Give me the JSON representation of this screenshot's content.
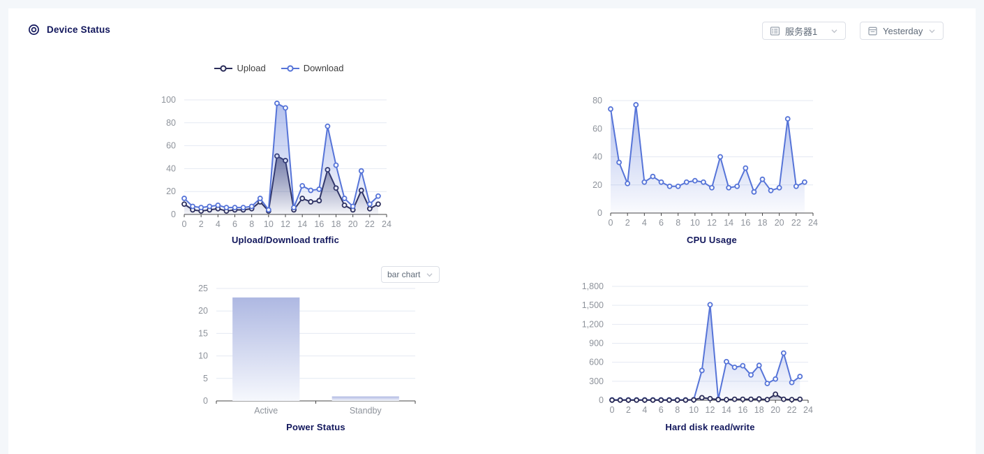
{
  "header": {
    "title": "Device Status",
    "server_select": {
      "value": "服务器1",
      "icon": "server-icon"
    },
    "time_select": {
      "value": "Yesterday",
      "icon": "calendar-icon"
    }
  },
  "colors": {
    "page_bg": "#f4f7fa",
    "card_bg": "#ffffff",
    "navy_text": "#12175c",
    "upload_line": "#2b2d5a",
    "download_line": "#5674d8",
    "axis_label": "#8e939b",
    "axis_line": "#454545",
    "gridline": "#e4e9f2",
    "bar_top": "#aeb8e2",
    "bar_bottom": "#f6f8fd",
    "select_border": "#dcdfe6",
    "select_text": "#5f6a78"
  },
  "chart_data": [
    {
      "id": "traffic",
      "type": "line",
      "title": "Upload/Download traffic",
      "legend": [
        "Upload",
        "Download"
      ],
      "legend_position": "top",
      "x": [
        0,
        1,
        2,
        3,
        4,
        5,
        6,
        7,
        8,
        9,
        10,
        11,
        12,
        13,
        14,
        15,
        16,
        17,
        18,
        19,
        20,
        21,
        22,
        23
      ],
      "x_ticks": [
        0,
        2,
        4,
        6,
        8,
        10,
        12,
        14,
        16,
        18,
        20,
        22,
        24
      ],
      "xlabel": "",
      "ylabel": "",
      "ylim": [
        0,
        100
      ],
      "y_ticks": [
        0,
        20,
        40,
        60,
        80,
        100
      ],
      "y_tick_labels": [
        "0",
        "20",
        "40",
        "60",
        "80",
        "100"
      ],
      "grid": true,
      "series": [
        {
          "name": "Upload",
          "color": "#2b2d5a",
          "values": [
            9,
            4,
            3,
            4,
            5,
            3,
            4,
            4,
            5,
            11,
            3,
            51,
            47,
            4,
            14,
            11,
            12,
            39,
            23,
            8,
            4,
            21,
            5,
            9
          ]
        },
        {
          "name": "Download",
          "color": "#5674d8",
          "values": [
            14,
            7,
            6,
            7,
            8,
            6,
            6,
            6,
            7,
            14,
            4,
            97,
            93,
            6,
            25,
            21,
            22,
            77,
            43,
            14,
            7,
            38,
            9,
            16
          ]
        }
      ]
    },
    {
      "id": "cpu",
      "type": "line",
      "title": "CPU Usage",
      "x": [
        0,
        1,
        2,
        3,
        4,
        5,
        6,
        7,
        8,
        9,
        10,
        11,
        12,
        13,
        14,
        15,
        16,
        17,
        18,
        19,
        20,
        21,
        22,
        23
      ],
      "x_ticks": [
        0,
        2,
        4,
        6,
        8,
        10,
        12,
        14,
        16,
        18,
        20,
        22,
        24
      ],
      "xlabel": "",
      "ylabel": "",
      "ylim": [
        0,
        80
      ],
      "y_ticks": [
        0,
        20,
        40,
        60,
        80
      ],
      "y_tick_labels": [
        "0",
        "20",
        "40",
        "60",
        "80"
      ],
      "grid": true,
      "series": [
        {
          "color": "#5674d8",
          "values": [
            74,
            36,
            21,
            77,
            22,
            26,
            22,
            19,
            19,
            22,
            23,
            22,
            18,
            40,
            18,
            19,
            32,
            15,
            24,
            16,
            18,
            67,
            19,
            22
          ]
        }
      ]
    },
    {
      "id": "power",
      "type": "bar",
      "title": "Power Status",
      "chart_type_label": "bar chart",
      "categories": [
        "Active",
        "Standby"
      ],
      "values": [
        23,
        1
      ],
      "xlabel": "",
      "ylabel": "",
      "ylim": [
        0,
        25
      ],
      "y_ticks": [
        0,
        5,
        10,
        15,
        20,
        25
      ],
      "y_tick_labels": [
        "0",
        "5",
        "10",
        "15",
        "20",
        "25"
      ],
      "grid": true
    },
    {
      "id": "disk",
      "type": "line",
      "title": "Hard disk read/write",
      "x": [
        0,
        1,
        2,
        3,
        4,
        5,
        6,
        7,
        8,
        9,
        10,
        11,
        12,
        13,
        14,
        15,
        16,
        17,
        18,
        19,
        20,
        21,
        22,
        23
      ],
      "x_ticks": [
        0,
        2,
        4,
        6,
        8,
        10,
        12,
        14,
        16,
        18,
        20,
        22,
        24
      ],
      "xlabel": "",
      "ylabel": "",
      "ylim": [
        0,
        1800
      ],
      "y_ticks": [
        0,
        300,
        600,
        900,
        1200,
        1500,
        1800
      ],
      "y_tick_labels": [
        "0",
        "300",
        "600",
        "900",
        "1,200",
        "1,500",
        "1,800"
      ],
      "grid": true,
      "series": [
        {
          "color": "#5674d8",
          "values": [
            5,
            5,
            5,
            5,
            5,
            5,
            5,
            5,
            5,
            5,
            8,
            470,
            1510,
            15,
            610,
            520,
            545,
            400,
            550,
            265,
            335,
            745,
            280,
            375
          ]
        },
        {
          "color": "#2b2d5a",
          "values": [
            2,
            2,
            2,
            2,
            2,
            2,
            2,
            2,
            2,
            2,
            5,
            40,
            25,
            10,
            10,
            15,
            15,
            15,
            20,
            10,
            95,
            15,
            10,
            15
          ]
        }
      ]
    }
  ]
}
